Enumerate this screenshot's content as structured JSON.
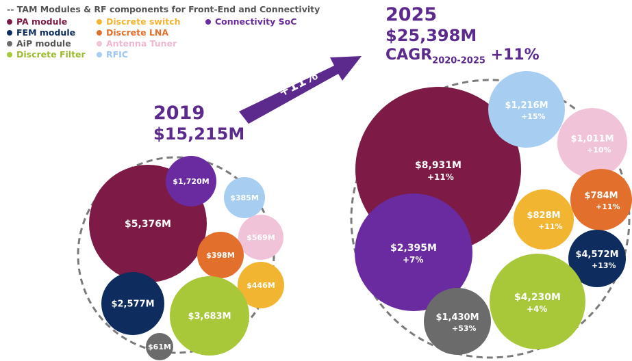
{
  "chart_data": [
    {
      "type": "bubble",
      "title": "2019",
      "total": "$15,215M",
      "bubbles": [
        {
          "series": "PA module",
          "label": "$5,376M",
          "value": 5376
        },
        {
          "series": "Connectivity SoC",
          "label": "$1,720M",
          "value": 1720
        },
        {
          "series": "RFIC",
          "label": "$385M",
          "value": 385
        },
        {
          "series": "Antenna Tuner",
          "label": "$569M",
          "value": 569
        },
        {
          "series": "Discrete LNA",
          "label": "$398M",
          "value": 398
        },
        {
          "series": "Discrete switch",
          "label": "$446M",
          "value": 446
        },
        {
          "series": "FEM module",
          "label": "$2,577M",
          "value": 2577
        },
        {
          "series": "Discrete Filter",
          "label": "$3,683M",
          "value": 3683
        },
        {
          "series": "AiP module",
          "label": "$61M",
          "value": 61
        }
      ]
    },
    {
      "type": "bubble",
      "title": "2025",
      "total": "$25,398M",
      "cagr_label": "CAGR",
      "cagr_period": "2020-2025",
      "cagr_value": "+11%",
      "bubbles": [
        {
          "series": "PA module",
          "label": "$8,931M",
          "growth": "+11%",
          "value": 8931
        },
        {
          "series": "Connectivity SoC",
          "label": "$2,395M",
          "growth": "+7%",
          "value": 2395
        },
        {
          "series": "RFIC",
          "label": "$1,216M",
          "growth": "+15%",
          "value": 1216
        },
        {
          "series": "Antenna Tuner",
          "label": "$1,011M",
          "growth": "+10%",
          "value": 1011
        },
        {
          "series": "Discrete LNA",
          "label": "$784M",
          "growth": "+11%",
          "value": 784
        },
        {
          "series": "Discrete switch",
          "label": "$828M",
          "growth": "+11%",
          "value": 828
        },
        {
          "series": "FEM module",
          "label": "$4,572M",
          "growth": "+13%",
          "value": 4572
        },
        {
          "series": "Discrete Filter",
          "label": "$4,230M",
          "growth": "+4%",
          "value": 4230
        },
        {
          "series": "AiP module",
          "label": "$1,430M",
          "growth": "+53%",
          "value": 1430
        }
      ]
    }
  ],
  "legend": {
    "title": "-- TAM Modules & RF components for Front-End and Connectivity",
    "items": [
      {
        "label": "PA module",
        "color": "#7d1a45"
      },
      {
        "label": "FEM module",
        "color": "#0e2c5e"
      },
      {
        "label": "AiP module",
        "color": "#6b6b6b"
      },
      {
        "label": "Discrete Filter",
        "color": "#a8c83a"
      },
      {
        "label": "Discrete switch",
        "color": "#f2b531"
      },
      {
        "label": "Discrete LNA",
        "color": "#e2702c"
      },
      {
        "label": "Antenna Tuner",
        "color": "#f0c3d8"
      },
      {
        "label": "RFIC",
        "color": "#a7cdf0"
      },
      {
        "label": "Connectivity SoC",
        "color": "#6a2aa0"
      }
    ]
  },
  "arrow_label": "+11%",
  "colors": {
    "title": "#5b2a8c",
    "arrow": "#5b2a8c",
    "dashed_border": "#7a7a7a"
  }
}
